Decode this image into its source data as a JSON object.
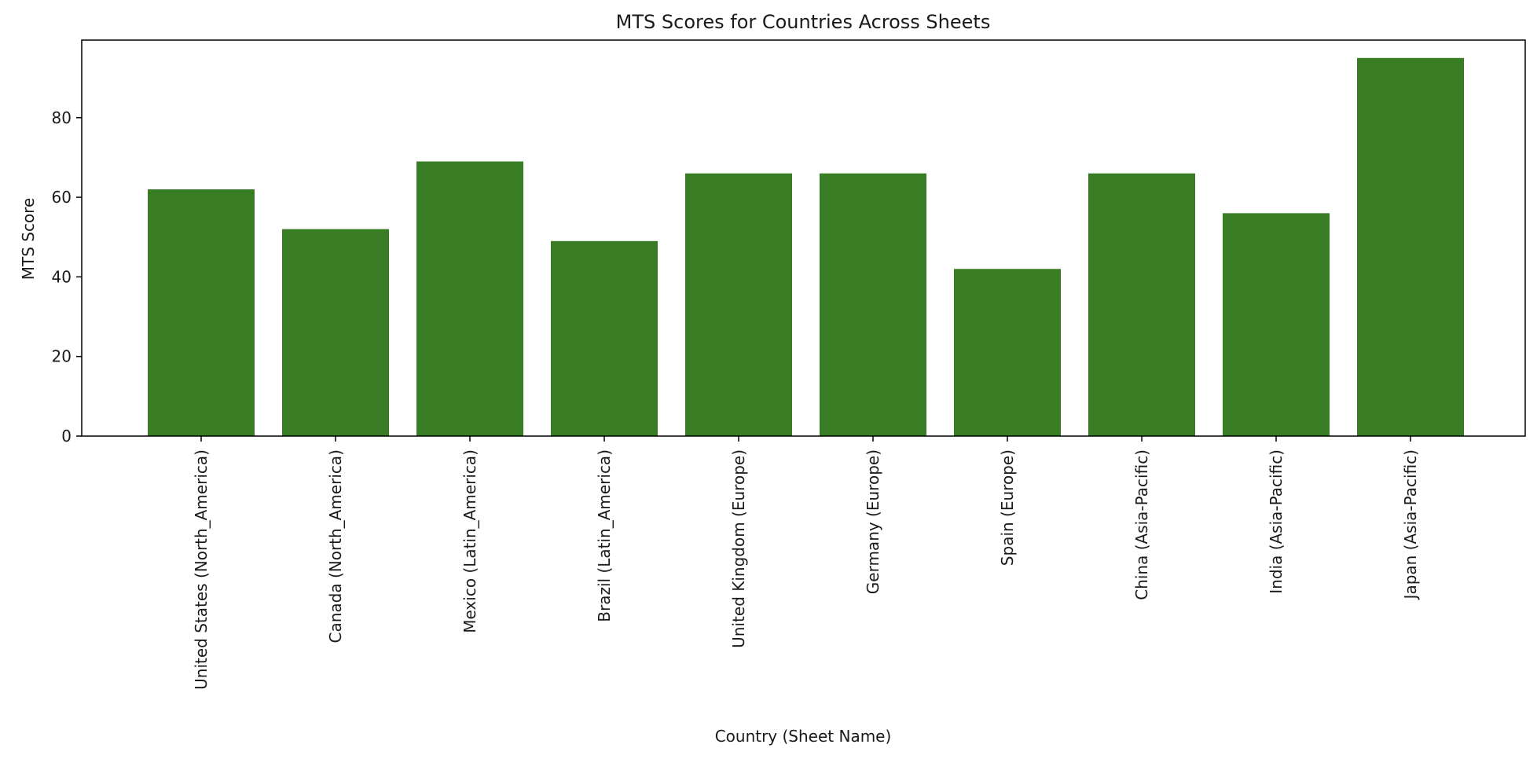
{
  "chart_data": {
    "type": "bar",
    "title": "MTS Scores for Countries Across Sheets",
    "xlabel": "Country (Sheet Name)",
    "ylabel": "MTS Score",
    "categories": [
      "United States (North_America)",
      "Canada (North_America)",
      "Mexico (Latin_America)",
      "Brazil (Latin_America)",
      "United Kingdom (Europe)",
      "Germany (Europe)",
      "Spain (Europe)",
      "China (Asia-Pacific)",
      "India (Asia-Pacific)",
      "Japan (Asia-Pacific)"
    ],
    "values": [
      62,
      52,
      69,
      49,
      66,
      66,
      42,
      66,
      56,
      95
    ],
    "ylim": [
      0,
      100
    ],
    "yticks": [
      "0",
      "20",
      "40",
      "60",
      "80"
    ],
    "grid": false,
    "legend": null,
    "bar_color": "#387d24"
  }
}
